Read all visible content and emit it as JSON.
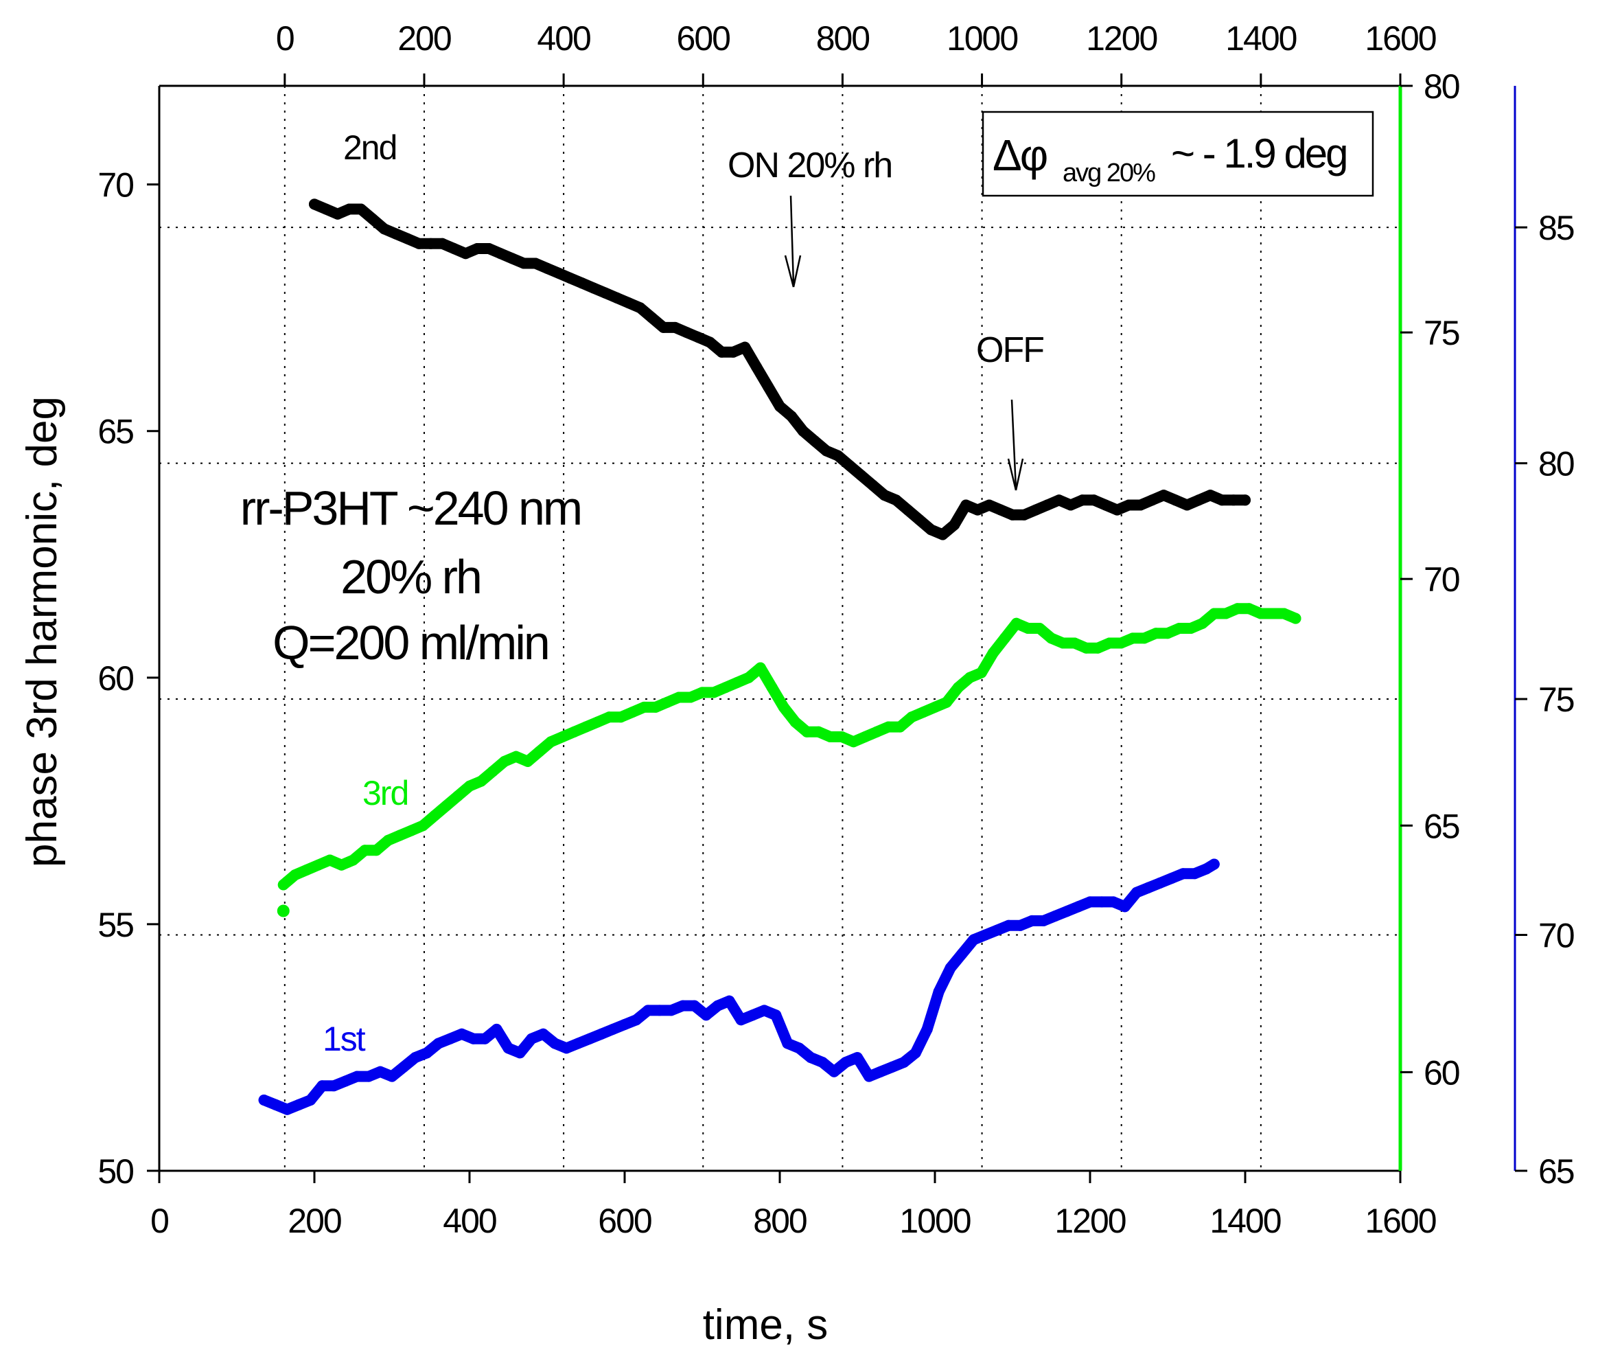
{
  "chart_data": {
    "type": "line",
    "title": "",
    "xlabel": "time, s",
    "ylabel": "phase 3rd harmonic, deg",
    "xlim": [
      0,
      1600
    ],
    "x_ticks": [
      "0",
      "200",
      "400",
      "600",
      "800",
      "1000",
      "1200",
      "1400",
      "1600"
    ],
    "top_xlim": [
      -180,
      1600
    ],
    "top_x_ticks": [
      "0",
      "200",
      "400",
      "600",
      "800",
      "1000",
      "1200",
      "1400",
      "1600"
    ],
    "ylim": [
      50,
      72
    ],
    "y_ticks": [
      "50",
      "55",
      "60",
      "65",
      "70"
    ],
    "green_ylim": [
      58,
      80
    ],
    "green_ticks": [
      "60",
      "65",
      "70",
      "75",
      "80"
    ],
    "blue_ylim": [
      65,
      88
    ],
    "blue_ticks": [
      "65",
      "70",
      "75",
      "80",
      "85"
    ],
    "grid": true,
    "series": [
      {
        "name": "2nd",
        "color": "#000000",
        "axis": "left",
        "x": [
          200,
          215,
          230,
          245,
          260,
          275,
          290,
          305,
          320,
          335,
          350,
          365,
          380,
          395,
          410,
          425,
          440,
          455,
          470,
          485,
          500,
          515,
          530,
          545,
          560,
          575,
          590,
          605,
          620,
          635,
          650,
          665,
          680,
          695,
          710,
          725,
          740,
          755,
          770,
          785,
          800,
          815,
          830,
          845,
          860,
          875,
          890,
          905,
          920,
          935,
          950,
          965,
          980,
          995,
          1010,
          1025,
          1040,
          1055,
          1070,
          1085,
          1100,
          1115,
          1130,
          1145,
          1160,
          1175,
          1190,
          1205,
          1220,
          1235,
          1250,
          1265,
          1280,
          1295,
          1310,
          1325,
          1340,
          1355,
          1370,
          1385,
          1400
        ],
        "values": [
          69.6,
          69.5,
          69.4,
          69.5,
          69.5,
          69.3,
          69.1,
          69.0,
          68.9,
          68.8,
          68.8,
          68.8,
          68.7,
          68.6,
          68.7,
          68.7,
          68.6,
          68.5,
          68.4,
          68.4,
          68.3,
          68.2,
          68.1,
          68.0,
          67.9,
          67.8,
          67.7,
          67.6,
          67.5,
          67.3,
          67.1,
          67.1,
          67.0,
          66.9,
          66.8,
          66.6,
          66.6,
          66.7,
          66.3,
          65.9,
          65.5,
          65.3,
          65.0,
          64.8,
          64.6,
          64.5,
          64.3,
          64.1,
          63.9,
          63.7,
          63.6,
          63.4,
          63.2,
          63.0,
          62.9,
          63.1,
          63.5,
          63.4,
          63.5,
          63.4,
          63.3,
          63.3,
          63.4,
          63.5,
          63.6,
          63.5,
          63.6,
          63.6,
          63.5,
          63.4,
          63.5,
          63.5,
          63.6,
          63.7,
          63.6,
          63.5,
          63.6,
          63.7,
          63.6,
          63.6,
          63.6
        ]
      },
      {
        "name": "3rd",
        "color": "#00ee00",
        "axis": "right-green",
        "x": [
          160,
          175,
          190,
          205,
          220,
          235,
          250,
          265,
          280,
          295,
          310,
          325,
          340,
          355,
          370,
          385,
          400,
          415,
          430,
          445,
          460,
          475,
          490,
          505,
          520,
          535,
          550,
          565,
          580,
          595,
          610,
          625,
          640,
          655,
          670,
          685,
          700,
          715,
          730,
          745,
          760,
          775,
          790,
          805,
          820,
          835,
          850,
          865,
          880,
          895,
          910,
          925,
          940,
          955,
          970,
          985,
          1000,
          1015,
          1030,
          1045,
          1060,
          1075,
          1090,
          1105,
          1120,
          1135,
          1150,
          1165,
          1180,
          1195,
          1210,
          1225,
          1240,
          1255,
          1270,
          1285,
          1300,
          1315,
          1330,
          1345,
          1360,
          1375,
          1390,
          1405,
          1420,
          1435,
          1450,
          1465
        ],
        "values": [
          63.8,
          64.0,
          64.1,
          64.2,
          64.3,
          64.2,
          64.3,
          64.5,
          64.5,
          64.7,
          64.8,
          64.9,
          65.0,
          65.2,
          65.4,
          65.6,
          65.8,
          65.9,
          66.1,
          66.3,
          66.4,
          66.3,
          66.5,
          66.7,
          66.8,
          66.9,
          67.0,
          67.1,
          67.2,
          67.2,
          67.3,
          67.4,
          67.4,
          67.5,
          67.6,
          67.6,
          67.7,
          67.7,
          67.8,
          67.9,
          68.0,
          68.2,
          67.8,
          67.4,
          67.1,
          66.9,
          66.9,
          66.8,
          66.8,
          66.7,
          66.8,
          66.9,
          67.0,
          67.0,
          67.2,
          67.3,
          67.4,
          67.5,
          67.8,
          68.0,
          68.1,
          68.5,
          68.8,
          69.1,
          69.0,
          69.0,
          68.8,
          68.7,
          68.7,
          68.6,
          68.6,
          68.7,
          68.7,
          68.8,
          68.8,
          68.9,
          68.9,
          69.0,
          69.0,
          69.1,
          69.3,
          69.3,
          69.4,
          69.4,
          69.3,
          69.3,
          69.3,
          69.2
        ]
      },
      {
        "name": "1st",
        "color": "#0000ee",
        "axis": "right-blue",
        "x": [
          135,
          150,
          165,
          180,
          195,
          210,
          225,
          240,
          255,
          270,
          285,
          300,
          315,
          330,
          345,
          360,
          375,
          390,
          405,
          420,
          435,
          450,
          465,
          480,
          495,
          510,
          525,
          540,
          555,
          570,
          585,
          600,
          615,
          630,
          645,
          660,
          675,
          690,
          705,
          720,
          735,
          750,
          765,
          780,
          795,
          810,
          825,
          840,
          855,
          870,
          885,
          900,
          915,
          930,
          945,
          960,
          975,
          990,
          1005,
          1020,
          1035,
          1050,
          1065,
          1080,
          1095,
          1110,
          1125,
          1140,
          1155,
          1170,
          1185,
          1200,
          1215,
          1230,
          1245,
          1260,
          1275,
          1290,
          1305,
          1320,
          1335,
          1350,
          1360
        ],
        "values": [
          66.5,
          66.4,
          66.3,
          66.4,
          66.5,
          66.8,
          66.8,
          66.9,
          67.0,
          67.0,
          67.1,
          67.0,
          67.2,
          67.4,
          67.5,
          67.7,
          67.8,
          67.9,
          67.8,
          67.8,
          68.0,
          67.6,
          67.5,
          67.8,
          67.9,
          67.7,
          67.6,
          67.7,
          67.8,
          67.9,
          68.0,
          68.1,
          68.2,
          68.4,
          68.4,
          68.4,
          68.5,
          68.5,
          68.3,
          68.5,
          68.6,
          68.2,
          68.3,
          68.4,
          68.3,
          67.7,
          67.6,
          67.4,
          67.3,
          67.1,
          67.3,
          67.4,
          67.0,
          67.1,
          67.2,
          67.3,
          67.5,
          68.0,
          68.8,
          69.3,
          69.6,
          69.9,
          70.0,
          70.1,
          70.2,
          70.2,
          70.3,
          70.3,
          70.4,
          70.5,
          70.6,
          70.7,
          70.7,
          70.7,
          70.6,
          70.9,
          71.0,
          71.1,
          71.2,
          71.3,
          71.3,
          71.4,
          71.5
        ]
      }
    ],
    "series_labels": [
      "2nd",
      "3rd",
      "1st"
    ],
    "annotations": {
      "on": "ON  20% rh",
      "off": "OFF",
      "delta_symbol": "Δφ",
      "delta_subscript": "avg 20%",
      "delta_value": "~ - 1.9 deg",
      "info_lines": [
        "rr-P3HT ~240 nm",
        "20% rh",
        "Q=200 ml/min"
      ]
    },
    "axis_colors": {
      "left": "#000000",
      "green": "#00ee00",
      "blue": "#0000cc"
    }
  }
}
